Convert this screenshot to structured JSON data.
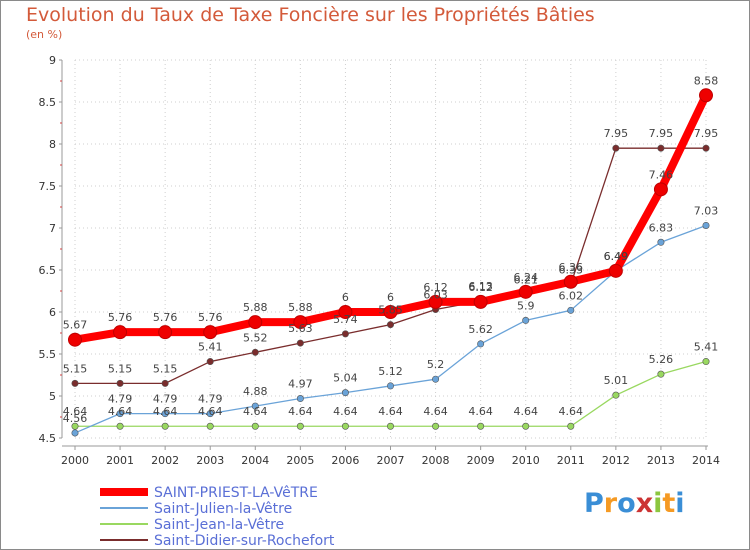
{
  "title": "Evolution du Taux de Taxe Foncière sur les Propriétés Bâties",
  "subtitle": "(en %)",
  "logo_text": "Proxiti",
  "chart_data": {
    "type": "line",
    "x": [
      2000,
      2001,
      2002,
      2003,
      2004,
      2005,
      2006,
      2007,
      2008,
      2009,
      2010,
      2011,
      2012,
      2013,
      2014
    ],
    "ylim": [
      4.5,
      9
    ],
    "yticks": [
      4.5,
      5,
      5.5,
      6,
      6.5,
      7,
      7.5,
      8,
      8.5,
      9
    ],
    "legend_position": "bottom-left",
    "series": [
      {
        "name": "SAINT-PRIEST-LA-VêTRE",
        "color": "#ff0000",
        "values": [
          5.67,
          5.76,
          5.76,
          5.76,
          5.88,
          5.88,
          6,
          6,
          6.12,
          6.12,
          6.24,
          6.36,
          6.49,
          7.46,
          8.58
        ],
        "labels": [
          "5.67",
          "5.76",
          "5.76",
          "5.76",
          "5.88",
          "5.88",
          "6",
          "6",
          "6.12",
          "6.12",
          "6.24",
          "6.36",
          "6.49",
          "7.46",
          "8.58"
        ]
      },
      {
        "name": "Saint-Julien-la-Vêtre",
        "color": "#6aa3d8",
        "values": [
          4.56,
          4.79,
          4.79,
          4.79,
          4.88,
          4.97,
          5.04,
          5.12,
          5.2,
          5.62,
          5.9,
          6.02,
          6.49,
          6.83,
          7.03
        ],
        "labels": [
          "4.56",
          "4.79",
          "4.79",
          "4.79",
          "4.88",
          "4.97",
          "5.04",
          "5.12",
          "5.2",
          "5.62",
          "5.9",
          "6.02",
          "6.49",
          "6.83",
          "7.03"
        ]
      },
      {
        "name": "Saint-Jean-la-Vêtre",
        "color": "#99d860",
        "values": [
          4.64,
          4.64,
          4.64,
          4.64,
          4.64,
          4.64,
          4.64,
          4.64,
          4.64,
          4.64,
          4.64,
          4.64,
          5.01,
          5.26,
          5.41
        ],
        "labels": [
          "4.64",
          "4.64",
          "4.64",
          "4.64",
          "4.64",
          "4.64",
          "4.64",
          "4.64",
          "4.64",
          "4.64",
          "4.64",
          "4.64",
          "5.01",
          "5.26",
          "5.41"
        ]
      },
      {
        "name": "Saint-Didier-sur-Rochefort",
        "color": "#7a2d2d",
        "values": [
          5.15,
          5.15,
          5.15,
          5.41,
          5.52,
          5.63,
          5.74,
          5.85,
          6.03,
          6.13,
          6.21,
          6.33,
          7.95,
          7.95,
          7.95
        ],
        "labels": [
          "5.15",
          "5.15",
          "5.15",
          "5.41",
          "5.52",
          "5.63",
          "5.74",
          "5.85",
          "6.03",
          "6.13",
          "6.21",
          "6.33",
          "7.95",
          "7.95",
          "7.95"
        ]
      }
    ]
  }
}
